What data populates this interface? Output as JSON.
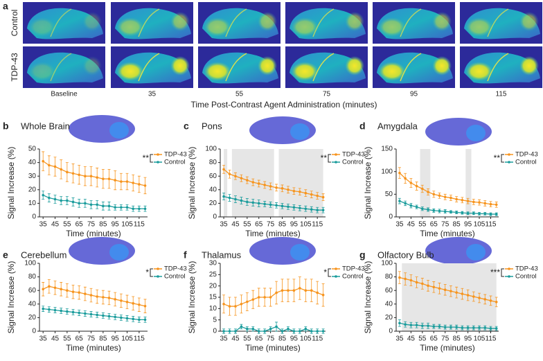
{
  "panel_a": {
    "letter": "a",
    "row_labels": [
      "Control",
      "TDP-43"
    ],
    "time_labels": [
      "Baseline",
      "35",
      "55",
      "75",
      "95",
      "115"
    ],
    "axis_title": "Time Post-Contrast Agent Administration (minutes)"
  },
  "chart_data": [
    {
      "type": "line",
      "panel": "b",
      "title": "Whole Brain",
      "significance": "**",
      "x": [
        35,
        40,
        45,
        50,
        55,
        60,
        65,
        70,
        75,
        80,
        85,
        90,
        95,
        100,
        105,
        110,
        115,
        120
      ],
      "series": [
        {
          "name": "TDP-43",
          "color": "#f7941d",
          "values": [
            41,
            38,
            37,
            35,
            33,
            32,
            31,
            30,
            30,
            29,
            28,
            28,
            27,
            26,
            26,
            25,
            24,
            23
          ],
          "errors": [
            7,
            7,
            7,
            7,
            7,
            7,
            7,
            7,
            7,
            7,
            7,
            7,
            7,
            6,
            6,
            6,
            6,
            6
          ]
        },
        {
          "name": "Control",
          "color": "#1a9c9c",
          "values": [
            16,
            14,
            13,
            12,
            12,
            11,
            10,
            10,
            9,
            9,
            8,
            8,
            7,
            7,
            7,
            6,
            6,
            6
          ],
          "errors": [
            3,
            3,
            3,
            3,
            3,
            3,
            3,
            3,
            3,
            3,
            3,
            3,
            2,
            2,
            2,
            2,
            2,
            2
          ]
        }
      ],
      "xlim": [
        32,
        122
      ],
      "ylim": [
        0,
        50
      ],
      "xticks": [
        35,
        45,
        55,
        65,
        75,
        85,
        95,
        105,
        115
      ],
      "yticks": [
        0,
        10,
        20,
        30,
        40,
        50
      ],
      "xlabel": "Time (minutes)",
      "ylabel": "Signal Increase (%)"
    },
    {
      "type": "line",
      "panel": "c",
      "title": "Pons",
      "significance": "**",
      "shaded": [
        [
          35,
          38
        ],
        [
          42,
          78
        ],
        [
          82,
          120
        ]
      ],
      "x": [
        35,
        40,
        45,
        50,
        55,
        60,
        65,
        70,
        75,
        80,
        85,
        90,
        95,
        100,
        105,
        110,
        115,
        120
      ],
      "series": [
        {
          "name": "TDP-43",
          "color": "#f7941d",
          "values": [
            70,
            63,
            60,
            57,
            54,
            51,
            49,
            47,
            45,
            43,
            42,
            40,
            38,
            37,
            35,
            33,
            31,
            29
          ],
          "errors": [
            6,
            6,
            5,
            5,
            5,
            5,
            5,
            5,
            5,
            5,
            5,
            5,
            5,
            5,
            5,
            5,
            5,
            5
          ]
        },
        {
          "name": "Control",
          "color": "#1a9c9c",
          "values": [
            30,
            28,
            26,
            24,
            22,
            21,
            20,
            19,
            18,
            17,
            16,
            15,
            14,
            13,
            12,
            11,
            10,
            10
          ],
          "errors": [
            5,
            5,
            5,
            5,
            5,
            5,
            5,
            4,
            4,
            4,
            4,
            4,
            4,
            4,
            4,
            4,
            4,
            4
          ]
        }
      ],
      "xlim": [
        32,
        122
      ],
      "ylim": [
        0,
        100
      ],
      "xticks": [
        35,
        45,
        55,
        65,
        75,
        85,
        95,
        105,
        115
      ],
      "yticks": [
        0,
        20,
        40,
        60,
        80,
        100
      ],
      "xlabel": "Time (minutes)",
      "ylabel": "Signal Increase (%)"
    },
    {
      "type": "line",
      "panel": "d",
      "title": "Amygdala",
      "significance": "**",
      "shaded": [
        [
          53,
          62
        ],
        [
          93,
          98
        ]
      ],
      "x": [
        35,
        40,
        45,
        50,
        55,
        60,
        65,
        70,
        75,
        80,
        85,
        90,
        95,
        100,
        105,
        110,
        115,
        120
      ],
      "series": [
        {
          "name": "TDP-43",
          "color": "#f7941d",
          "values": [
            97,
            85,
            75,
            68,
            62,
            55,
            50,
            47,
            44,
            42,
            39,
            37,
            35,
            33,
            32,
            30,
            28,
            27
          ],
          "errors": [
            12,
            11,
            10,
            9,
            8,
            7,
            7,
            6,
            6,
            6,
            6,
            6,
            6,
            6,
            6,
            6,
            6,
            6
          ]
        },
        {
          "name": "Control",
          "color": "#1a9c9c",
          "values": [
            35,
            30,
            25,
            22,
            18,
            16,
            14,
            13,
            12,
            11,
            10,
            9,
            8,
            8,
            7,
            7,
            6,
            6
          ],
          "errors": [
            6,
            5,
            5,
            4,
            4,
            4,
            4,
            4,
            4,
            3,
            3,
            3,
            3,
            3,
            3,
            3,
            3,
            3
          ]
        }
      ],
      "xlim": [
        32,
        122
      ],
      "ylim": [
        0,
        150
      ],
      "xticks": [
        35,
        45,
        55,
        65,
        75,
        85,
        95,
        105,
        115
      ],
      "yticks": [
        0,
        50,
        100,
        150
      ],
      "xlabel": "Time (minutes)",
      "ylabel": "Signal Increase (%)"
    },
    {
      "type": "line",
      "panel": "e",
      "title": "Cerebellum",
      "significance": "*",
      "x": [
        35,
        40,
        45,
        50,
        55,
        60,
        65,
        70,
        75,
        80,
        85,
        90,
        95,
        100,
        105,
        110,
        115,
        120
      ],
      "series": [
        {
          "name": "TDP-43",
          "color": "#f7941d",
          "values": [
            62,
            66,
            64,
            62,
            60,
            58,
            57,
            55,
            53,
            51,
            50,
            49,
            47,
            45,
            43,
            41,
            39,
            37
          ],
          "errors": [
            10,
            10,
            10,
            10,
            10,
            10,
            10,
            10,
            10,
            10,
            10,
            10,
            10,
            10,
            10,
            10,
            10,
            10
          ]
        },
        {
          "name": "Control",
          "color": "#1a9c9c",
          "values": [
            33,
            32,
            31,
            30,
            29,
            28,
            27,
            26,
            25,
            24,
            23,
            22,
            21,
            20,
            19,
            18,
            17,
            17
          ],
          "errors": [
            4,
            4,
            4,
            4,
            4,
            4,
            4,
            4,
            4,
            4,
            4,
            4,
            4,
            4,
            4,
            4,
            4,
            4
          ]
        }
      ],
      "xlim": [
        32,
        122
      ],
      "ylim": [
        0,
        100
      ],
      "xticks": [
        35,
        45,
        55,
        65,
        75,
        85,
        95,
        105,
        115
      ],
      "yticks": [
        0,
        20,
        40,
        60,
        80,
        100
      ],
      "xlabel": "Time (minutes)",
      "ylabel": "Signal Increase (%)"
    },
    {
      "type": "line",
      "panel": "f",
      "title": "Thalamus",
      "significance": "*",
      "x": [
        35,
        40,
        45,
        50,
        55,
        60,
        65,
        70,
        75,
        80,
        85,
        90,
        95,
        100,
        105,
        110,
        115,
        120
      ],
      "series": [
        {
          "name": "TDP-43",
          "color": "#f7941d",
          "values": [
            12,
            11,
            11,
            12,
            13,
            14,
            15,
            15,
            15,
            17,
            18,
            18,
            18,
            19,
            18,
            18,
            17,
            16
          ],
          "errors": [
            4,
            4,
            4,
            4,
            4,
            4,
            4,
            4,
            4,
            5,
            5,
            5,
            5,
            5,
            5,
            5,
            5,
            5
          ]
        },
        {
          "name": "Control",
          "color": "#1a9c9c",
          "values": [
            0,
            0,
            0,
            2,
            1,
            1,
            0,
            0,
            1,
            2,
            0,
            1,
            0,
            0,
            1,
            0,
            0,
            0
          ],
          "errors": [
            1,
            1,
            1,
            1,
            1,
            1,
            1,
            1,
            1,
            2,
            1,
            1,
            1,
            1,
            1,
            1,
            1,
            1
          ]
        }
      ],
      "xlim": [
        32,
        122
      ],
      "ylim": [
        0,
        30
      ],
      "xticks": [
        35,
        45,
        55,
        65,
        75,
        85,
        95,
        105,
        115
      ],
      "yticks": [
        0,
        5,
        10,
        15,
        20,
        25,
        30
      ],
      "xlabel": "Time (minutes)",
      "ylabel": "Signal Increase (%)"
    },
    {
      "type": "line",
      "panel": "g",
      "title": "Olfactory Bulb",
      "significance": "***",
      "shaded": [
        [
          37,
          120
        ]
      ],
      "x": [
        35,
        40,
        45,
        50,
        55,
        60,
        65,
        70,
        75,
        80,
        85,
        90,
        95,
        100,
        105,
        110,
        115,
        120
      ],
      "series": [
        {
          "name": "TDP-43",
          "color": "#f7941d",
          "values": [
            79,
            77,
            75,
            72,
            70,
            67,
            65,
            63,
            61,
            59,
            57,
            55,
            53,
            51,
            49,
            47,
            45,
            43
          ],
          "errors": [
            9,
            9,
            8,
            8,
            8,
            8,
            8,
            8,
            8,
            8,
            8,
            8,
            8,
            7,
            7,
            7,
            7,
            7
          ]
        },
        {
          "name": "Control",
          "color": "#1a9c9c",
          "values": [
            12,
            10,
            9,
            9,
            8,
            8,
            7,
            7,
            6,
            6,
            6,
            5,
            5,
            5,
            5,
            5,
            4,
            4
          ],
          "errors": [
            5,
            4,
            4,
            4,
            4,
            4,
            3,
            3,
            3,
            3,
            3,
            3,
            3,
            3,
            3,
            3,
            3,
            3
          ]
        }
      ],
      "xlim": [
        32,
        122
      ],
      "ylim": [
        0,
        100
      ],
      "xticks": [
        35,
        45,
        55,
        65,
        75,
        85,
        95,
        105,
        115
      ],
      "yticks": [
        0,
        20,
        40,
        60,
        80,
        100
      ],
      "xlabel": "Time (minutes)",
      "ylabel": "Signal Increase (%)"
    }
  ]
}
